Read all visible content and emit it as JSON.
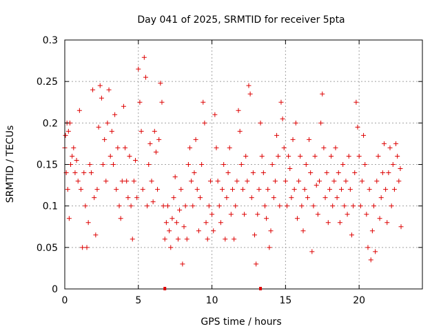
{
  "chart_data": {
    "type": "scatter",
    "title": "Day 041 of 2025, SRMTID for receiver 5pta",
    "xlabel": "GPS time / hours",
    "ylabel": "SRMTID / TECUs",
    "xlim": [
      0,
      24.3
    ],
    "ylim": [
      0,
      0.3
    ],
    "xticks": [
      0,
      5,
      10,
      15,
      20
    ],
    "xtick_labels": [
      "0",
      "5",
      "10",
      "15",
      "20"
    ],
    "yticks": [
      0,
      0.05,
      0.1,
      0.15,
      0.2,
      0.25,
      0.3
    ],
    "ytick_labels": [
      "0",
      "0.05",
      "0.1",
      "0.15",
      "0.2",
      "0.25",
      "0.3"
    ],
    "grid": true,
    "marker": "plus",
    "color": "#dd0000",
    "series": [
      {
        "name": "SRMTID",
        "points": [
          [
            0.0,
            0.17
          ],
          [
            0.05,
            0.185
          ],
          [
            0.1,
            0.14
          ],
          [
            0.15,
            0.2
          ],
          [
            0.2,
            0.12
          ],
          [
            0.25,
            0.19
          ],
          [
            0.3,
            0.085
          ],
          [
            0.35,
            0.2
          ],
          [
            0.4,
            0.15
          ],
          [
            0.5,
            0.16
          ],
          [
            0.6,
            0.17
          ],
          [
            0.7,
            0.14
          ],
          [
            0.8,
            0.155
          ],
          [
            0.9,
            0.13
          ],
          [
            1.0,
            0.215
          ],
          [
            1.1,
            0.12
          ],
          [
            1.2,
            0.05
          ],
          [
            1.3,
            0.14
          ],
          [
            1.4,
            0.1
          ],
          [
            1.5,
            0.05
          ],
          [
            1.6,
            0.08
          ],
          [
            1.7,
            0.15
          ],
          [
            1.8,
            0.14
          ],
          [
            1.9,
            0.24
          ],
          [
            2.0,
            0.11
          ],
          [
            2.1,
            0.065
          ],
          [
            2.2,
            0.12
          ],
          [
            2.3,
            0.195
          ],
          [
            2.4,
            0.245
          ],
          [
            2.5,
            0.23
          ],
          [
            2.6,
            0.15
          ],
          [
            2.7,
            0.18
          ],
          [
            2.8,
            0.13
          ],
          [
            2.9,
            0.2
          ],
          [
            3.0,
            0.24
          ],
          [
            3.1,
            0.16
          ],
          [
            3.2,
            0.19
          ],
          [
            3.3,
            0.15
          ],
          [
            3.4,
            0.21
          ],
          [
            3.5,
            0.12
          ],
          [
            3.6,
            0.17
          ],
          [
            3.7,
            0.1
          ],
          [
            3.8,
            0.085
          ],
          [
            3.9,
            0.13
          ],
          [
            4.0,
            0.22
          ],
          [
            4.1,
            0.17
          ],
          [
            4.2,
            0.13
          ],
          [
            4.3,
            0.11
          ],
          [
            4.4,
            0.16
          ],
          [
            4.5,
            0.1
          ],
          [
            4.6,
            0.06
          ],
          [
            4.7,
            0.13
          ],
          [
            4.8,
            0.155
          ],
          [
            4.9,
            0.11
          ],
          [
            5.0,
            0.265
          ],
          [
            5.1,
            0.225
          ],
          [
            5.2,
            0.19
          ],
          [
            5.3,
            0.12
          ],
          [
            5.4,
            0.279
          ],
          [
            5.5,
            0.255
          ],
          [
            5.6,
            0.1
          ],
          [
            5.7,
            0.15
          ],
          [
            5.8,
            0.175
          ],
          [
            5.9,
            0.13
          ],
          [
            6.0,
            0.105
          ],
          [
            6.1,
            0.19
          ],
          [
            6.2,
            0.165
          ],
          [
            6.3,
            0.12
          ],
          [
            6.4,
            0.18
          ],
          [
            6.5,
            0.248
          ],
          [
            6.6,
            0.225
          ],
          [
            6.7,
            0.1
          ],
          [
            6.8,
            0.06
          ],
          [
            6.9,
            0.08
          ],
          [
            7.0,
            0.1
          ],
          [
            7.1,
            0.07
          ],
          [
            7.2,
            0.05
          ],
          [
            7.3,
            0.085
          ],
          [
            7.4,
            0.11
          ],
          [
            7.5,
            0.135
          ],
          [
            7.6,
            0.08
          ],
          [
            7.7,
            0.06
          ],
          [
            7.8,
            0.095
          ],
          [
            7.9,
            0.12
          ],
          [
            8.0,
            0.03
          ],
          [
            8.1,
            0.075
          ],
          [
            8.2,
            0.1
          ],
          [
            8.3,
            0.06
          ],
          [
            8.4,
            0.15
          ],
          [
            8.5,
            0.17
          ],
          [
            8.6,
            0.13
          ],
          [
            8.7,
            0.1
          ],
          [
            8.8,
            0.14
          ],
          [
            8.9,
            0.18
          ],
          [
            9.0,
            0.12
          ],
          [
            9.1,
            0.07
          ],
          [
            9.2,
            0.11
          ],
          [
            9.3,
            0.15
          ],
          [
            9.4,
            0.225
          ],
          [
            9.5,
            0.2
          ],
          [
            9.6,
            0.08
          ],
          [
            9.7,
            0.06
          ],
          [
            9.8,
            0.1
          ],
          [
            9.9,
            0.13
          ],
          [
            10.0,
            0.09
          ],
          [
            10.1,
            0.07
          ],
          [
            10.2,
            0.21
          ],
          [
            10.3,
            0.17
          ],
          [
            10.4,
            0.13
          ],
          [
            10.5,
            0.1
          ],
          [
            10.6,
            0.08
          ],
          [
            10.7,
            0.12
          ],
          [
            10.8,
            0.15
          ],
          [
            10.9,
            0.06
          ],
          [
            11.0,
            0.11
          ],
          [
            11.1,
            0.14
          ],
          [
            11.2,
            0.17
          ],
          [
            11.3,
            0.09
          ],
          [
            11.4,
            0.12
          ],
          [
            11.5,
            0.06
          ],
          [
            11.6,
            0.1
          ],
          [
            11.7,
            0.13
          ],
          [
            11.8,
            0.215
          ],
          [
            11.9,
            0.19
          ],
          [
            12.0,
            0.15
          ],
          [
            12.1,
            0.12
          ],
          [
            12.2,
            0.09
          ],
          [
            12.3,
            0.16
          ],
          [
            12.4,
            0.13
          ],
          [
            12.5,
            0.245
          ],
          [
            12.6,
            0.235
          ],
          [
            12.7,
            0.11
          ],
          [
            12.8,
            0.14
          ],
          [
            12.9,
            0.065
          ],
          [
            13.0,
            0.03
          ],
          [
            13.1,
            0.09
          ],
          [
            13.2,
            0.12
          ],
          [
            13.3,
            0.2
          ],
          [
            13.4,
            0.16
          ],
          [
            13.5,
            0.14
          ],
          [
            13.6,
            0.1
          ],
          [
            13.7,
            0.085
          ],
          [
            13.8,
            0.12
          ],
          [
            13.9,
            0.05
          ],
          [
            14.0,
            0.07
          ],
          [
            14.1,
            0.15
          ],
          [
            14.2,
            0.11
          ],
          [
            14.3,
            0.13
          ],
          [
            14.4,
            0.185
          ],
          [
            14.5,
            0.16
          ],
          [
            14.6,
            0.1
          ],
          [
            14.7,
            0.225
          ],
          [
            14.8,
            0.205
          ],
          [
            14.9,
            0.17
          ],
          [
            15.0,
            0.13
          ],
          [
            15.1,
            0.1
          ],
          [
            15.2,
            0.16
          ],
          [
            15.3,
            0.145
          ],
          [
            15.4,
            0.11
          ],
          [
            15.5,
            0.18
          ],
          [
            15.6,
            0.12
          ],
          [
            15.7,
            0.2
          ],
          [
            15.8,
            0.085
          ],
          [
            15.9,
            0.13
          ],
          [
            16.0,
            0.16
          ],
          [
            16.1,
            0.1
          ],
          [
            16.2,
            0.07
          ],
          [
            16.3,
            0.12
          ],
          [
            16.4,
            0.15
          ],
          [
            16.5,
            0.11
          ],
          [
            16.6,
            0.18
          ],
          [
            16.7,
            0.14
          ],
          [
            16.8,
            0.045
          ],
          [
            16.9,
            0.1
          ],
          [
            17.0,
            0.16
          ],
          [
            17.1,
            0.125
          ],
          [
            17.2,
            0.09
          ],
          [
            17.3,
            0.13
          ],
          [
            17.4,
            0.2
          ],
          [
            17.5,
            0.235
          ],
          [
            17.6,
            0.17
          ],
          [
            17.7,
            0.11
          ],
          [
            17.8,
            0.14
          ],
          [
            17.9,
            0.08
          ],
          [
            18.0,
            0.12
          ],
          [
            18.1,
            0.16
          ],
          [
            18.2,
            0.1
          ],
          [
            18.3,
            0.13
          ],
          [
            18.4,
            0.17
          ],
          [
            18.5,
            0.11
          ],
          [
            18.6,
            0.14
          ],
          [
            18.7,
            0.08
          ],
          [
            18.8,
            0.12
          ],
          [
            18.9,
            0.15
          ],
          [
            19.0,
            0.1
          ],
          [
            19.1,
            0.13
          ],
          [
            19.2,
            0.09
          ],
          [
            19.3,
            0.16
          ],
          [
            19.4,
            0.12
          ],
          [
            19.5,
            0.065
          ],
          [
            19.6,
            0.1
          ],
          [
            19.7,
            0.14
          ],
          [
            19.8,
            0.225
          ],
          [
            19.9,
            0.195
          ],
          [
            20.0,
            0.16
          ],
          [
            20.1,
            0.1
          ],
          [
            20.2,
            0.13
          ],
          [
            20.3,
            0.185
          ],
          [
            20.4,
            0.15
          ],
          [
            20.5,
            0.09
          ],
          [
            20.6,
            0.05
          ],
          [
            20.7,
            0.12
          ],
          [
            20.8,
            0.035
          ],
          [
            20.9,
            0.07
          ],
          [
            21.0,
            0.1
          ],
          [
            21.1,
            0.045
          ],
          [
            21.2,
            0.13
          ],
          [
            21.3,
            0.16
          ],
          [
            21.4,
            0.085
          ],
          [
            21.5,
            0.11
          ],
          [
            21.6,
            0.14
          ],
          [
            21.7,
            0.175
          ],
          [
            21.8,
            0.12
          ],
          [
            21.9,
            0.08
          ],
          [
            22.0,
            0.14
          ],
          [
            22.1,
            0.17
          ],
          [
            22.2,
            0.1
          ],
          [
            22.3,
            0.15
          ],
          [
            22.4,
            0.12
          ],
          [
            22.5,
            0.175
          ],
          [
            22.6,
            0.16
          ],
          [
            22.7,
            0.13
          ],
          [
            22.8,
            0.145
          ],
          [
            22.85,
            0.075
          ]
        ]
      }
    ],
    "axis_markers": [
      6.8,
      13.3
    ]
  }
}
